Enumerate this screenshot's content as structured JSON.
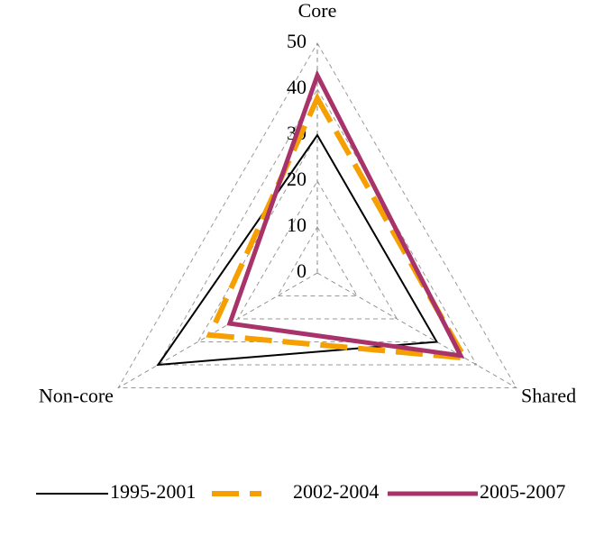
{
  "chart_data": {
    "type": "radar",
    "categories": [
      "Core",
      "Shared",
      "Non-core"
    ],
    "rlim": [
      0,
      50
    ],
    "rticks": [
      0,
      10,
      20,
      30,
      40,
      50
    ],
    "grid": true,
    "legend": "bottom",
    "series": [
      {
        "name": "1995-2001",
        "color": "#000000",
        "style": "solid",
        "width": 2,
        "values": [
          30,
          30,
          40
        ]
      },
      {
        "name": "2002-2004",
        "color": "#f5a000",
        "style": "dashed",
        "width": 6,
        "values": [
          38,
          37,
          27
        ]
      },
      {
        "name": "2005-2007",
        "color": "#a8336a",
        "style": "solid",
        "width": 5,
        "values": [
          43,
          36,
          22
        ]
      }
    ]
  }
}
